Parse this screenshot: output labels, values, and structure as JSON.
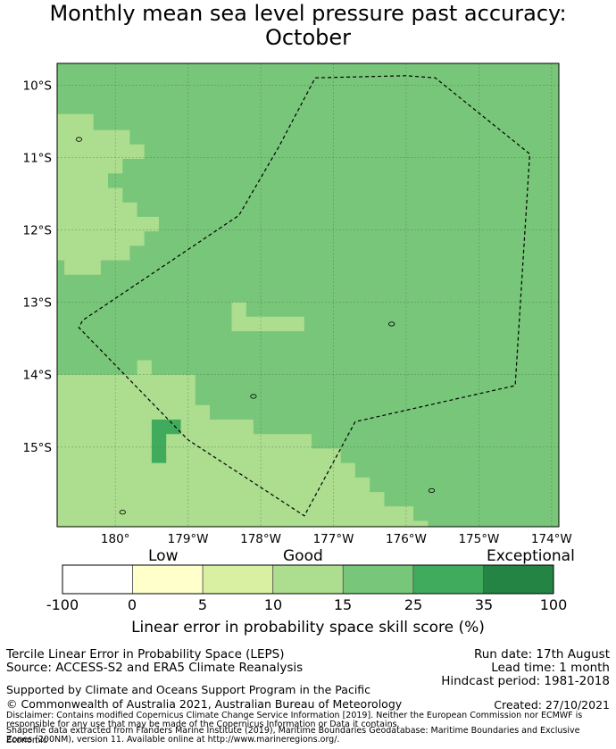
{
  "title": {
    "line1": "Monthly mean sea level pressure past accuracy:",
    "line2": "October"
  },
  "map": {
    "lon_range": [
      -180.8,
      -173.9
    ],
    "lat_range": [
      -16.1,
      -9.7
    ],
    "lat_ticks": [
      {
        "value": -10,
        "label": "10°S"
      },
      {
        "value": -11,
        "label": "11°S"
      },
      {
        "value": -12,
        "label": "12°S"
      },
      {
        "value": -13,
        "label": "13°S"
      },
      {
        "value": -14,
        "label": "14°S"
      },
      {
        "value": -15,
        "label": "15°S"
      }
    ],
    "lon_ticks": [
      {
        "value": -180,
        "label": "180°"
      },
      {
        "value": -179,
        "label": "179°W"
      },
      {
        "value": -178,
        "label": "178°W"
      },
      {
        "value": -177,
        "label": "177°W"
      },
      {
        "value": -176,
        "label": "176°W"
      },
      {
        "value": -175,
        "label": "175°W"
      },
      {
        "value": -174,
        "label": "174°W"
      }
    ],
    "grid": true,
    "eez_boundary": [
      [
        -177.25,
        -9.9
      ],
      [
        -176.0,
        -9.87
      ],
      [
        -175.6,
        -9.9
      ],
      [
        -174.3,
        -10.95
      ],
      [
        -174.5,
        -14.15
      ],
      [
        -176.7,
        -14.65
      ],
      [
        -177.4,
        -15.95
      ],
      [
        -179.0,
        -14.9
      ],
      [
        -180.5,
        -13.35
      ],
      [
        -180.45,
        -13.25
      ],
      [
        -178.3,
        -11.8
      ],
      [
        -177.75,
        -10.85
      ],
      [
        -177.25,
        -9.9
      ]
    ],
    "skill_zones": [
      {
        "class": "10-15",
        "points": [
          [
            -180.8,
            -10.4
          ],
          [
            -180.3,
            -10.4
          ],
          [
            -180.3,
            -10.62
          ],
          [
            -179.8,
            -10.62
          ],
          [
            -179.8,
            -10.82
          ],
          [
            -179.6,
            -10.82
          ],
          [
            -179.6,
            -11.02
          ],
          [
            -179.9,
            -11.02
          ],
          [
            -179.9,
            -11.22
          ],
          [
            -180.1,
            -11.22
          ],
          [
            -180.1,
            -11.42
          ],
          [
            -179.9,
            -11.42
          ],
          [
            -179.9,
            -11.62
          ],
          [
            -179.7,
            -11.62
          ],
          [
            -179.7,
            -11.82
          ],
          [
            -179.4,
            -11.82
          ],
          [
            -179.4,
            -12.02
          ],
          [
            -179.6,
            -12.02
          ],
          [
            -179.6,
            -12.22
          ],
          [
            -179.8,
            -12.22
          ],
          [
            -179.8,
            -12.42
          ],
          [
            -180.2,
            -12.42
          ],
          [
            -180.2,
            -12.62
          ],
          [
            -180.7,
            -12.62
          ],
          [
            -180.7,
            -12.42
          ],
          [
            -180.8,
            -12.42
          ]
        ]
      },
      {
        "class": "10-15",
        "points": [
          [
            -178.4,
            -13.0
          ],
          [
            -178.2,
            -13.0
          ],
          [
            -178.2,
            -13.2
          ],
          [
            -177.4,
            -13.2
          ],
          [
            -177.4,
            -13.4
          ],
          [
            -178.4,
            -13.4
          ]
        ]
      },
      {
        "class": "10-15",
        "points": [
          [
            -180.8,
            -14.0
          ],
          [
            -179.7,
            -14.0
          ],
          [
            -179.7,
            -13.8
          ],
          [
            -179.5,
            -13.8
          ],
          [
            -179.5,
            -14.0
          ],
          [
            -178.9,
            -14.0
          ],
          [
            -178.9,
            -14.42
          ],
          [
            -178.7,
            -14.42
          ],
          [
            -178.7,
            -14.62
          ],
          [
            -178.1,
            -14.62
          ],
          [
            -178.1,
            -14.82
          ],
          [
            -177.3,
            -14.82
          ],
          [
            -177.3,
            -15.02
          ],
          [
            -176.9,
            -15.02
          ],
          [
            -176.9,
            -15.22
          ],
          [
            -176.7,
            -15.22
          ],
          [
            -176.7,
            -15.42
          ],
          [
            -176.5,
            -15.42
          ],
          [
            -176.5,
            -15.62
          ],
          [
            -176.3,
            -15.62
          ],
          [
            -176.3,
            -15.82
          ],
          [
            -175.9,
            -15.82
          ],
          [
            -175.9,
            -16.02
          ],
          [
            -175.7,
            -16.02
          ],
          [
            -175.7,
            -16.1
          ],
          [
            -180.8,
            -16.1
          ]
        ]
      },
      {
        "class": "25-35",
        "points": [
          [
            -179.5,
            -14.62
          ],
          [
            -179.1,
            -14.62
          ],
          [
            -179.1,
            -14.82
          ],
          [
            -179.3,
            -14.82
          ],
          [
            -179.3,
            -15.22
          ],
          [
            -179.5,
            -15.22
          ]
        ]
      }
    ],
    "islands": [
      {
        "center": [
          -176.2,
          -13.3
        ]
      },
      {
        "center": [
          -178.1,
          -14.3
        ]
      },
      {
        "center": [
          -175.65,
          -15.6
        ]
      },
      {
        "center": [
          -179.9,
          -15.9
        ]
      },
      {
        "center": [
          -180.5,
          -10.75
        ]
      }
    ]
  },
  "colorbar": {
    "categories": [
      "Low",
      "Good",
      "Exceptional"
    ],
    "ticks": [
      "-100",
      "0",
      "5",
      "10",
      "15",
      "25",
      "35",
      "100"
    ],
    "colors": [
      "#ffffff",
      "#ffffcc",
      "#d9f0a3",
      "#addd8e",
      "#78c679",
      "#41ab5d",
      "#238443"
    ],
    "label": "Linear error in probability space skill score (%)"
  },
  "footer": {
    "method": "Tercile Linear Error in Probability Space (LEPS)",
    "source": "Source: ACCESS-S2 and ERA5 Climate Reanalysis",
    "run_date": "Run date: 17th August",
    "lead_time": "Lead time: 1 month",
    "hindcast": "Hindcast period: 1981-2018",
    "support": "Supported by Climate and Oceans Support Program in the Pacific",
    "copyright": "© Commonwealth of Australia 2021, Australian Bureau of Meteorology",
    "created": "Created: 27/10/2021",
    "disclaimer1": "Disclaimer: Contains modified Copernicus Climate Change Service Information [2019]. Neither the European Commission nor ECMWF is",
    "disclaimer2": "responsible for any use that may be made of the Copernicus Information or Data it contains.",
    "shapefile1": "Shapefile data extracted from Flanders Marine Institute (2019), Maritime Boundaries Geodatabase: Maritime Boundaries and Exclusive Economic",
    "shapefile2": "Zones (200NM), version 11. Available online at http://www.marineregions.org/."
  }
}
